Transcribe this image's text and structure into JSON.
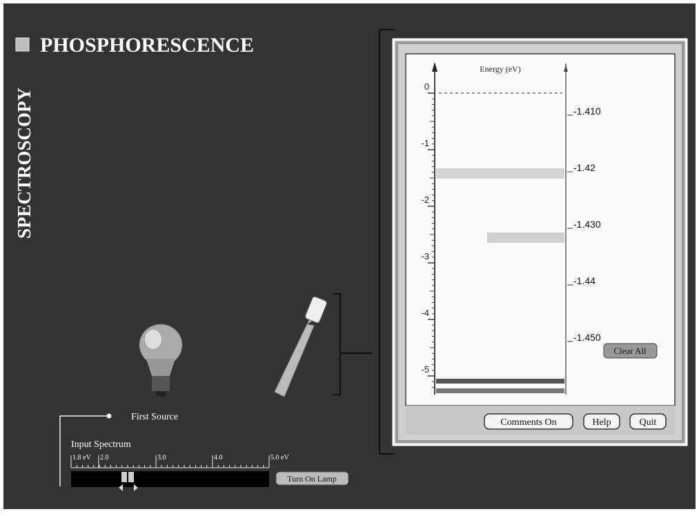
{
  "header": {
    "title": "PHOSPHORESCENCE",
    "section": "SPECTROSCOPY"
  },
  "energy_panel": {
    "axis_title": "Energy (eV)",
    "left_labels": [
      "0",
      "-1",
      "-2",
      "-3",
      "-4",
      "-5"
    ],
    "right_labels": [
      "-1.410",
      "-1.42",
      "-1.430",
      "-1.44",
      "-1.450"
    ],
    "clear_button": "Clear All",
    "buttons": [
      "Comments On",
      "Help",
      "Quit"
    ]
  },
  "source": {
    "label": "First Source",
    "spectrum_title": "Input Spectrum",
    "scale_labels": [
      "1.8 eV",
      "2.0",
      "3.0",
      "4.0",
      "5.0 eV"
    ],
    "lamp_button": "Turn On Lamp"
  }
}
